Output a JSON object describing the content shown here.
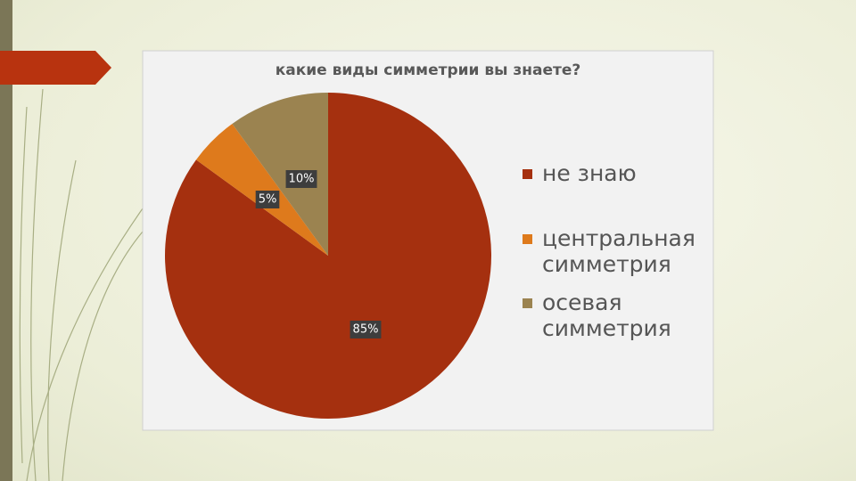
{
  "chart_data": {
    "type": "pie",
    "title": "какие виды симметрии вы знаете?",
    "categories": [
      "не знаю",
      "центральная симметрия",
      "осевая симметрия"
    ],
    "values": [
      85,
      5,
      10
    ],
    "value_labels": [
      "85%",
      "5%",
      "10%"
    ],
    "colors": [
      "#a5300f",
      "#de7a1c",
      "#9b8350"
    ]
  }
}
